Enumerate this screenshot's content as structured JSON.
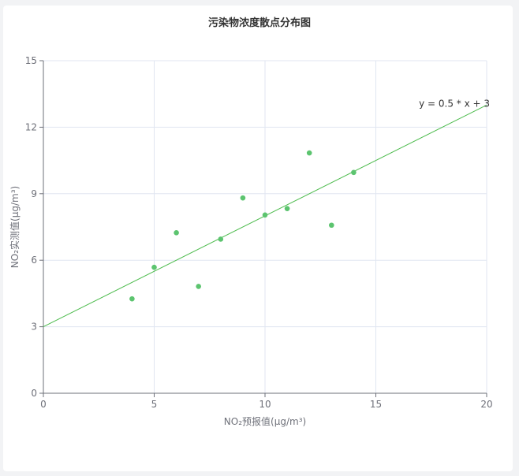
{
  "chart_data": {
    "type": "scatter",
    "title": "污染物浓度散点分布图",
    "xlabel": "NO₂预报值(μg/m³)",
    "ylabel": "NO₂实测值(μg/m³)",
    "xlim": [
      0,
      20
    ],
    "ylim": [
      0,
      15
    ],
    "xticks": [
      0,
      5,
      10,
      15,
      20
    ],
    "yticks": [
      0,
      3,
      6,
      9,
      12,
      15
    ],
    "grid": true,
    "points": [
      {
        "x": 4,
        "y": 4.26
      },
      {
        "x": 5,
        "y": 5.68
      },
      {
        "x": 6,
        "y": 7.24
      },
      {
        "x": 7,
        "y": 4.82
      },
      {
        "x": 8,
        "y": 6.95
      },
      {
        "x": 9,
        "y": 8.81
      },
      {
        "x": 10,
        "y": 8.04
      },
      {
        "x": 11,
        "y": 8.33
      },
      {
        "x": 12,
        "y": 10.84
      },
      {
        "x": 13,
        "y": 7.58
      },
      {
        "x": 14,
        "y": 9.96
      }
    ],
    "regression": {
      "slope": 0.5,
      "intercept": 3,
      "label": "y = 0.5 * x + 3"
    },
    "colors": {
      "point": "#5cc46f",
      "line": "#4cbb4c",
      "grid": "#e0e6f1",
      "axis": "#6e7079"
    }
  }
}
